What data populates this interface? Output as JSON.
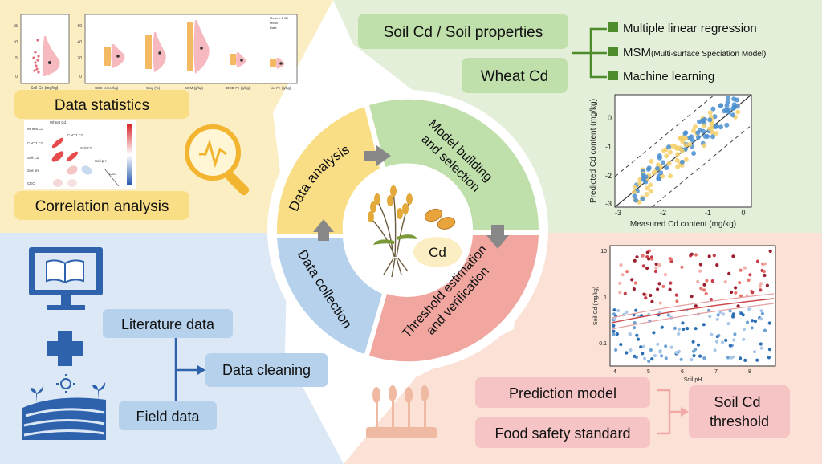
{
  "center": {
    "quadrants": {
      "data_analysis": "Data analysis",
      "model_building": [
        "Model building",
        "and selection"
      ],
      "threshold": [
        "Threshold estimation",
        "and verification"
      ],
      "data_collection": "Data collection"
    },
    "cd_label": "Cd"
  },
  "top_left": {
    "data_statistics": "Data statistics",
    "correlation_analysis": "Correlation analysis",
    "violin": {
      "small_axis_label": "Soil Cd (mg/kg)",
      "small_y_ticks": [
        "15",
        "10",
        "5",
        "0"
      ],
      "big_y_ticks": [
        "60",
        "40",
        "20",
        "0"
      ],
      "big_x_labels": [
        "CEC (cmol/kg)",
        "Clay (%)",
        "SOM (g/kg)",
        "DCD-Fe (g/kg)",
        "ox-Fe (g/kg)"
      ],
      "legend": [
        "Mean ± 1 SD",
        "Mean",
        "Data"
      ]
    },
    "corr_labels": [
      "Wheat Cd",
      "CaCl2 Cd",
      "Soil Cd",
      "Soil pH",
      "CEC"
    ]
  },
  "top_right": {
    "soil_props": "Soil Cd / Soil properties",
    "wheat_cd": "Wheat Cd",
    "methods": {
      "mlr": "Multiple linear regression",
      "msm": "MSM",
      "msm_full": "(Multi-surface Speciation Model)",
      "ml": "Machine learning"
    },
    "scatter": {
      "xlabel": "Measured Cd content (mg/kg)",
      "ylabel": "Predicted Cd content (mg/kg)",
      "x_ticks": [
        "-3",
        "-2",
        "-1",
        "0"
      ],
      "y_ticks": [
        "0",
        "-1",
        "-2",
        "-3"
      ]
    }
  },
  "bottom_left": {
    "literature": "Literature data",
    "field": "Field data",
    "cleaning": "Data cleaning"
  },
  "bottom_right": {
    "prediction_model": "Prediction model",
    "food_safety": "Food safety standard",
    "threshold": [
      "Soil Cd",
      "threshold"
    ],
    "ph_chart": {
      "xlabel": "Soil pH",
      "ylabel": "Soil Cd (mg/kg)",
      "x_ticks": [
        "4",
        "5",
        "6",
        "7",
        "8"
      ],
      "y_ticks": [
        "10",
        "1",
        "0.1"
      ]
    }
  },
  "colors": {
    "yellow_bg": "#fbeec3",
    "green_bg": "#e3efd8",
    "blue_bg": "#dce8f5",
    "pink_bg": "#fbe1d6",
    "yellow_ring": "#f9de86",
    "green_ring": "#bfdfab",
    "blue_ring": "#b5d1ec",
    "pink_ring": "#f1a7a0",
    "dark_blue": "#2f62ad",
    "method_green": "#4c8c2b"
  }
}
